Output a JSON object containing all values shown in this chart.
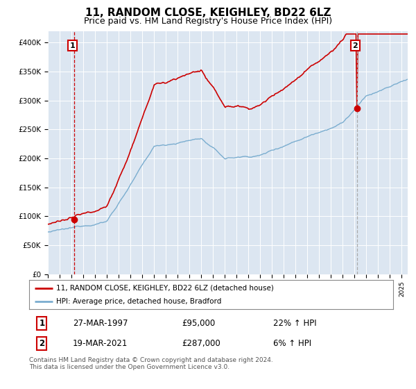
{
  "title": "11, RANDOM CLOSE, KEIGHLEY, BD22 6LZ",
  "subtitle": "Price paid vs. HM Land Registry's House Price Index (HPI)",
  "title_fontsize": 11,
  "subtitle_fontsize": 9,
  "plot_bg_color": "#dce6f1",
  "grid_color": "#ffffff",
  "red_line_color": "#cc0000",
  "blue_line_color": "#7aadcf",
  "marker_color": "#cc0000",
  "vline1_color": "#cc0000",
  "vline2_color": "#aaaaaa",
  "ylim": [
    0,
    420000
  ],
  "xlim_start": 1995.0,
  "xlim_end": 2025.5,
  "event1_x": 1997.23,
  "event1_y": 95000,
  "event1_label": "1",
  "event1_date": "27-MAR-1997",
  "event1_price": "£95,000",
  "event1_hpi": "22% ↑ HPI",
  "event2_x": 2021.21,
  "event2_y": 287000,
  "event2_label": "2",
  "event2_date": "19-MAR-2021",
  "event2_price": "£287,000",
  "event2_hpi": "6% ↑ HPI",
  "legend_line1": "11, RANDOM CLOSE, KEIGHLEY, BD22 6LZ (detached house)",
  "legend_line2": "HPI: Average price, detached house, Bradford",
  "footer": "Contains HM Land Registry data © Crown copyright and database right 2024.\nThis data is licensed under the Open Government Licence v3.0.",
  "yticks": [
    0,
    50000,
    100000,
    150000,
    200000,
    250000,
    300000,
    350000,
    400000
  ],
  "ytick_labels": [
    "£0",
    "£50K",
    "£100K",
    "£150K",
    "£200K",
    "£250K",
    "£300K",
    "£350K",
    "£400K"
  ]
}
